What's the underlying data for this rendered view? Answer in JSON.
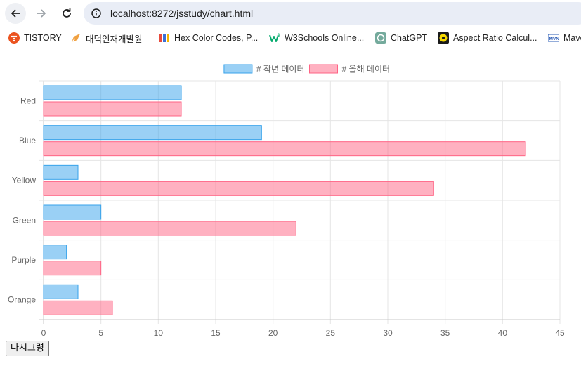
{
  "browser": {
    "url": "localhost:8272/jsstudy/chart.html",
    "bookmarks": [
      {
        "label": "TISTORY",
        "icon": "tistory-icon",
        "color": "#eb531f"
      },
      {
        "label": "대덕인재개발원",
        "icon": "pen-icon",
        "color": "#f0a040"
      },
      {
        "label": "Hex Color Codes, P...",
        "icon": "book-icon",
        "color": "#3b6fd6"
      },
      {
        "label": "W3Schools Online...",
        "icon": "w3schools-icon",
        "color": "#04aa6d"
      },
      {
        "label": "ChatGPT",
        "icon": "chatgpt-icon",
        "color": "#74aa9c"
      },
      {
        "label": "Aspect Ratio Calcul...",
        "icon": "aspect-ratio-icon",
        "color": "#f5d800"
      },
      {
        "label": "Mave",
        "icon": "maven-icon",
        "color": "#2a5bb5"
      }
    ]
  },
  "chart_data": {
    "type": "bar",
    "orientation": "horizontal",
    "categories": [
      "Red",
      "Blue",
      "Yellow",
      "Green",
      "Purple",
      "Orange"
    ],
    "series": [
      {
        "name": "# 작년 데이터",
        "values": [
          12,
          19,
          3,
          5,
          2,
          3
        ],
        "fill": "rgba(54,162,235,0.5)",
        "border": "#36a2eb"
      },
      {
        "name": "# 올해 데이터",
        "values": [
          12,
          42,
          34,
          22,
          5,
          6
        ],
        "fill": "rgba(255,99,132,0.5)",
        "border": "#ff6384"
      }
    ],
    "xlim": [
      0,
      45
    ],
    "xticks": [
      "0",
      "5",
      "10",
      "15",
      "20",
      "25",
      "30",
      "35",
      "40",
      "45"
    ],
    "grid": true,
    "legend": "top-center"
  },
  "controls": {
    "redraw_label": "다시그령"
  }
}
